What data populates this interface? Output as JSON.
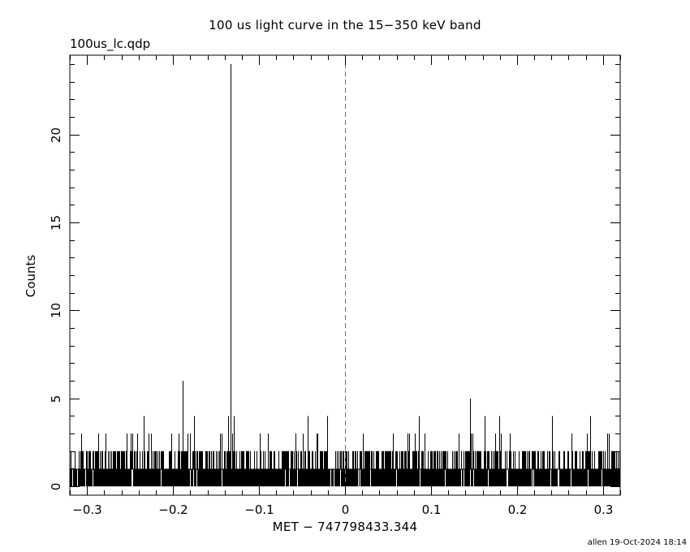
{
  "chart_data": {
    "type": "bar",
    "title": "100 us light curve in the 15−350 keV band",
    "file_label": "100us_lc.qdp",
    "xlabel": "MET − 747798433.344",
    "ylabel": "Counts",
    "footer": "allen 19-Oct-2024 18:14",
    "xlim": [
      -0.32,
      0.32
    ],
    "ylim": [
      -0.5,
      24.5
    ],
    "x_ticks": [
      -0.3,
      -0.2,
      -0.1,
      0,
      0.1,
      0.2,
      0.3
    ],
    "x_tick_labels": [
      "−0.3",
      "−0.2",
      "−0.1",
      "0",
      "0.1",
      "0.2",
      "0.3"
    ],
    "y_ticks": [
      0,
      5,
      10,
      15,
      20
    ],
    "y_tick_labels": [
      "0",
      "5",
      "10",
      "15",
      "20"
    ],
    "bin_width": 0.0001,
    "baseline_counts": 1,
    "reference_line": {
      "x": 0,
      "color": "#1f8fb0",
      "style": "dashed"
    },
    "peaks": [
      {
        "x": -0.1335,
        "y": 24
      },
      {
        "x": -0.1885,
        "y": 6
      },
      {
        "x": 0.145,
        "y": 5
      },
      {
        "x": -0.2345,
        "y": 4
      },
      {
        "x": -0.1755,
        "y": 4
      },
      {
        "x": -0.136,
        "y": 4
      },
      {
        "x": -0.129,
        "y": 4
      },
      {
        "x": -0.0435,
        "y": 4
      },
      {
        "x": -0.0205,
        "y": 4
      },
      {
        "x": 0.0855,
        "y": 4
      },
      {
        "x": 0.1625,
        "y": 4
      },
      {
        "x": 0.1795,
        "y": 4
      },
      {
        "x": 0.2405,
        "y": 4
      },
      {
        "x": 0.2855,
        "y": 4
      }
    ],
    "grid": false,
    "colors": {
      "bars": "#000000",
      "axes": "#000000",
      "reference": "#1f8fb0"
    }
  }
}
